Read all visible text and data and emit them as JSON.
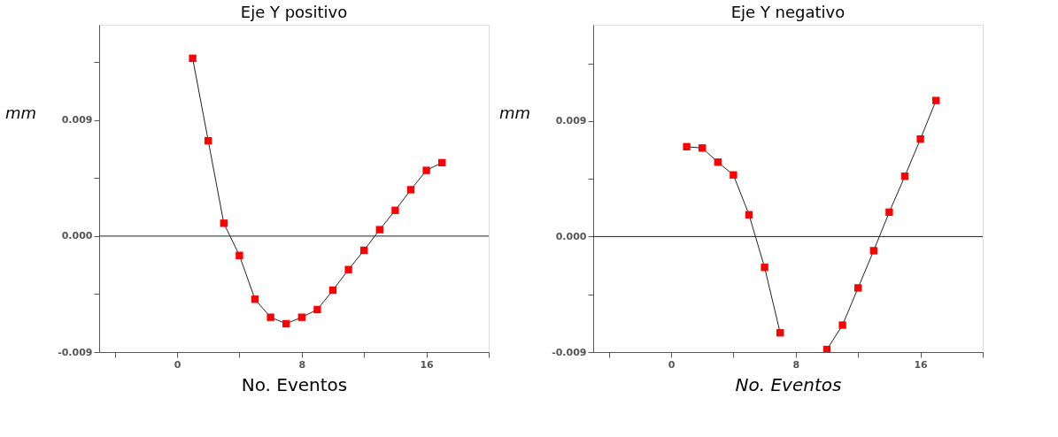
{
  "chart_data": [
    {
      "type": "line",
      "title": "Eje Y positivo",
      "xlabel": "No. Eventos",
      "ylabel": "mm",
      "xlim": [
        -5,
        20
      ],
      "ylim": [
        -0.009,
        0.0164
      ],
      "xticks": [
        {
          "value": -4,
          "label": null
        },
        0,
        {
          "value": 4,
          "label": null
        },
        8,
        {
          "value": 12,
          "label": null
        },
        16,
        {
          "value": 20,
          "label": null
        }
      ],
      "yticks": [
        {
          "value": -0.009,
          "label": "-0.009"
        },
        {
          "value": -0.0045,
          "label": null
        },
        {
          "value": 0,
          "label": "0.000"
        },
        {
          "value": 0.0045,
          "label": null
        },
        {
          "value": 0.009,
          "label": "0.009"
        },
        {
          "value": 0.0135,
          "label": null
        }
      ],
      "x": [
        1,
        2,
        3,
        4,
        5,
        6,
        7,
        8,
        9,
        10,
        11,
        12,
        13,
        14,
        15,
        16,
        17
      ],
      "series": [
        {
          "color": "#ff0000",
          "values": [
            0.0138,
            0.0074,
            0.001,
            -0.0015,
            -0.0049,
            -0.0063,
            -0.0068,
            -0.0063,
            -0.0057,
            -0.0042,
            -0.0026,
            -0.0011,
            0.0005,
            0.002,
            0.0036,
            0.0051,
            0.0057
          ]
        }
      ],
      "ref_lines": [
        {
          "axis": "y",
          "value": 0,
          "label": null
        }
      ],
      "marker": "square",
      "line_style": "solid",
      "grid": false
    },
    {
      "type": "line",
      "title": "Eje Y negativo",
      "xlabel": "No. Eventos",
      "ylabel": "mm",
      "xlim": [
        -5,
        20
      ],
      "ylim": [
        -0.009,
        0.0165
      ],
      "xticks": [
        {
          "value": -4,
          "label": null
        },
        0,
        {
          "value": 4,
          "label": null
        },
        8,
        {
          "value": 12,
          "label": null
        },
        16,
        {
          "value": 20,
          "label": null
        }
      ],
      "yticks": [
        {
          "value": -0.009,
          "label": "-0.009"
        },
        {
          "value": -0.0045,
          "label": null
        },
        {
          "value": 0,
          "label": "0.000"
        },
        {
          "value": 0.0045,
          "label": null
        },
        {
          "value": 0.009,
          "label": "0.009"
        },
        {
          "value": 0.0135,
          "label": null
        }
      ],
      "x": [
        1,
        2,
        3,
        4,
        5,
        6,
        7,
        8,
        9,
        10,
        11,
        12,
        13,
        14,
        15,
        16,
        17
      ],
      "series": [
        {
          "color": "#ff0000",
          "values": [
            0.007,
            0.0069,
            0.0058,
            0.0048,
            0.0017,
            -0.0024,
            -0.0075,
            null,
            null,
            -0.0088,
            -0.0069,
            -0.004,
            -0.0011,
            0.0019,
            0.0047,
            0.0076,
            0.0106
          ]
        }
      ],
      "ref_lines": [
        {
          "axis": "y",
          "value": 0,
          "label": null
        }
      ],
      "marker": "square",
      "line_style": "solid",
      "grid": false
    }
  ]
}
